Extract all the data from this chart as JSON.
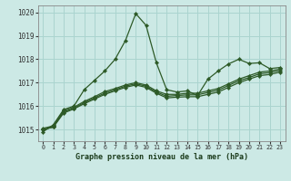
{
  "title": "Graphe pression niveau de la mer (hPa)",
  "xlabel_ticks": [
    0,
    1,
    2,
    3,
    4,
    5,
    6,
    7,
    8,
    9,
    10,
    11,
    12,
    13,
    14,
    15,
    16,
    17,
    18,
    19,
    20,
    21,
    22,
    23
  ],
  "ylim": [
    1014.5,
    1020.3
  ],
  "yticks": [
    1015,
    1016,
    1017,
    1018,
    1019,
    1020
  ],
  "xlim": [
    -0.5,
    23.5
  ],
  "bg_color": "#cce9e5",
  "grid_color": "#aad4cf",
  "line_color": "#2d5a27",
  "marker": "D",
  "marker_size": 2.2,
  "linewidth": 0.9,
  "series": [
    [
      1014.9,
      1015.2,
      1015.85,
      1016.0,
      1016.7,
      1017.1,
      1017.5,
      1018.0,
      1018.8,
      1019.95,
      1019.45,
      1017.85,
      1016.7,
      1016.6,
      1016.65,
      1016.45,
      1017.15,
      1017.5,
      1017.8,
      1018.0,
      1017.82,
      1017.85,
      1017.6,
      1017.65
    ],
    [
      1015.05,
      1015.15,
      1015.8,
      1015.95,
      1016.2,
      1016.4,
      1016.62,
      1016.75,
      1016.9,
      1017.0,
      1016.9,
      1016.65,
      1016.5,
      1016.5,
      1016.55,
      1016.55,
      1016.65,
      1016.75,
      1016.95,
      1017.15,
      1017.3,
      1017.45,
      1017.5,
      1017.58
    ],
    [
      1015.0,
      1015.1,
      1015.75,
      1015.9,
      1016.15,
      1016.35,
      1016.55,
      1016.7,
      1016.85,
      1016.95,
      1016.85,
      1016.6,
      1016.42,
      1016.45,
      1016.48,
      1016.48,
      1016.58,
      1016.68,
      1016.88,
      1017.08,
      1017.22,
      1017.38,
      1017.43,
      1017.52
    ],
    [
      1015.0,
      1015.1,
      1015.7,
      1015.88,
      1016.1,
      1016.3,
      1016.5,
      1016.65,
      1016.8,
      1016.9,
      1016.8,
      1016.55,
      1016.35,
      1016.38,
      1016.4,
      1016.4,
      1016.5,
      1016.6,
      1016.8,
      1017.0,
      1017.15,
      1017.3,
      1017.35,
      1017.45
    ]
  ]
}
